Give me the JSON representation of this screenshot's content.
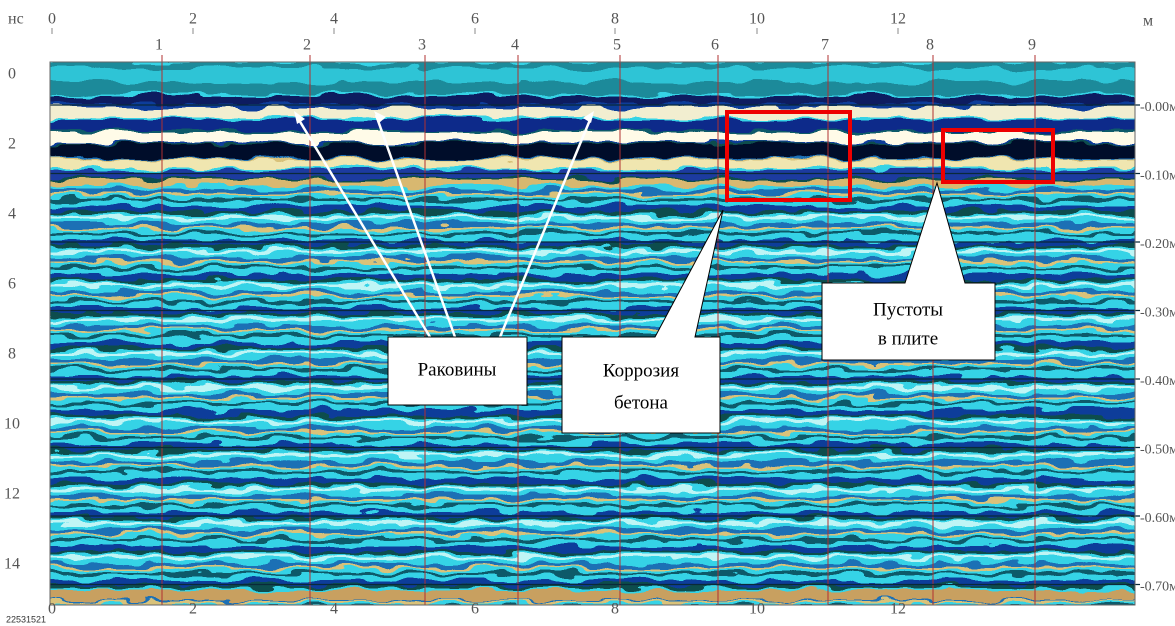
{
  "depth_unit": "нс",
  "distance_unit": "м",
  "top_axis": [
    0,
    2,
    4,
    6,
    8,
    10,
    12
  ],
  "markers": [
    1,
    2,
    3,
    4,
    5,
    6,
    7,
    8,
    9
  ],
  "left_axis": [
    0,
    2,
    4,
    6,
    8,
    10,
    12,
    14
  ],
  "right_axis": [
    "-0.00м",
    "-0.10м",
    "-0.20м",
    "-0.30м",
    "-0.40м",
    "-0.50м",
    "-0.60м",
    "-0.70м"
  ],
  "bottom_axis": [
    0,
    2,
    4,
    6,
    8,
    10,
    12
  ],
  "file_id": "22531521",
  "callouts": {
    "holes": "Раковины",
    "corrosion": [
      "Коррозия",
      "бетона"
    ],
    "voids": [
      "Пустоты",
      "в плите"
    ]
  }
}
